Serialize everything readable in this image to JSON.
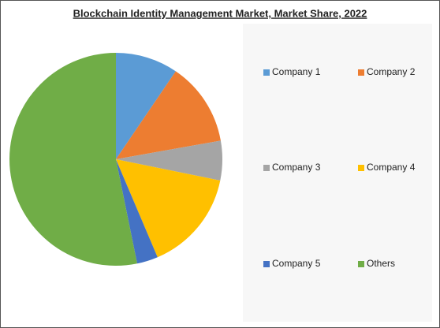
{
  "chart_data": {
    "type": "pie",
    "title": "Blockchain Identity Management Market, Market Share, 2022",
    "categories": [
      "Company 1",
      "Company 2",
      "Company 3",
      "Company 4",
      "Company 5",
      "Others"
    ],
    "values": [
      9.5,
      12.7,
      6,
      15.4,
      3.2,
      53.2
    ],
    "colors": [
      "#5b9bd5",
      "#ed7d31",
      "#a5a5a5",
      "#ffc000",
      "#4472c4",
      "#70ad47"
    ],
    "legend": "right"
  }
}
